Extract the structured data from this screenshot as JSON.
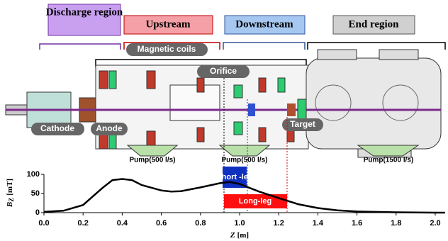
{
  "labels": {
    "discharge": "Discharge region",
    "upstream": "Upstream",
    "downstream": "Downstream",
    "end": "End region",
    "coils": "Magnetic coils",
    "orifice": "Orifice",
    "cathode": "Cathode",
    "anode": "Anode",
    "target": "Target",
    "pump1": "Pump(500 l/s)",
    "pump2": "Pump(500 l/s)",
    "pump3": "Pump(1500 l/s)",
    "short_leg": "Short -leg",
    "long_leg": "Long-leg"
  },
  "chart_data": {
    "type": "line",
    "ylabel": {
      "symbol": "B",
      "subscript": "Z",
      "unit": "[mT]"
    },
    "xlabel": {
      "symbol": "Z",
      "unit": "[m]"
    },
    "x": [
      0.0,
      0.1,
      0.2,
      0.3,
      0.35,
      0.4,
      0.45,
      0.5,
      0.6,
      0.65,
      0.7,
      0.8,
      0.9,
      0.95,
      1.0,
      1.05,
      1.1,
      1.2,
      1.3,
      1.4,
      1.5,
      1.6,
      1.8,
      2.0,
      2.05
    ],
    "values": [
      2,
      5,
      20,
      65,
      85,
      88,
      85,
      72,
      58,
      55,
      56,
      66,
      77,
      80,
      75,
      65,
      55,
      38,
      22,
      12,
      6,
      3,
      1,
      0,
      0
    ],
    "color": "#000000",
    "xlim": [
      0,
      2.05
    ],
    "ylim": [
      0,
      100
    ],
    "xticks": [
      {
        "value": 0,
        "label": "0.0"
      },
      {
        "value": 0.2,
        "label": "0.2"
      },
      {
        "value": 0.4,
        "label": "0.4"
      },
      {
        "value": 0.6,
        "label": "0.6"
      },
      {
        "value": 0.8,
        "label": "0.8"
      },
      {
        "value": 1,
        "label": "1.0"
      },
      {
        "value": 1.2,
        "label": "1.2"
      },
      {
        "value": 1.4,
        "label": "1.4"
      },
      {
        "value": 1.6,
        "label": "1.6"
      },
      {
        "value": 1.8,
        "label": "1.8"
      },
      {
        "value": 2,
        "label": "2.0"
      }
    ],
    "yticks": [
      0,
      50,
      100
    ]
  }
}
